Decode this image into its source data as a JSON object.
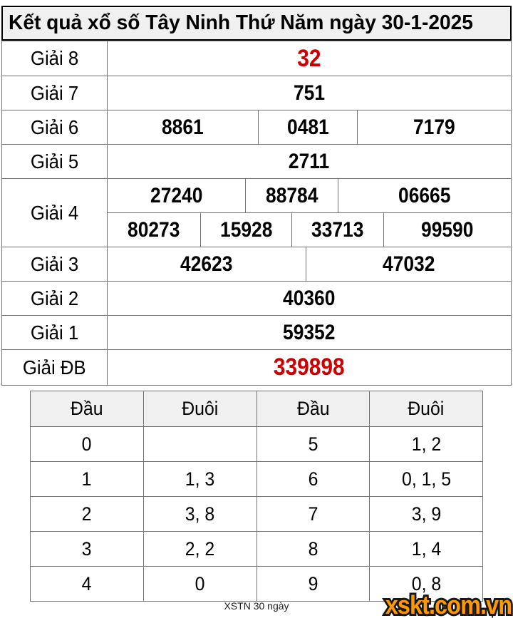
{
  "title": "Kết quả xổ số Tây Ninh Thứ Năm ngày 30-1-2025",
  "results": {
    "rows": [
      {
        "label": "Giải 8",
        "groups": [
          {
            "cells": [
              {
                "value": "32",
                "red": true
              }
            ]
          }
        ]
      },
      {
        "label": "Giải 7",
        "groups": [
          {
            "cells": [
              {
                "value": "751"
              }
            ]
          }
        ]
      },
      {
        "label": "Giải 6",
        "groups": [
          {
            "cells": [
              {
                "value": "8861"
              },
              {
                "value": "0481"
              },
              {
                "value": "7179"
              }
            ]
          }
        ]
      },
      {
        "label": "Giải 5",
        "groups": [
          {
            "cells": [
              {
                "value": "2711"
              }
            ]
          }
        ]
      },
      {
        "label": "Giải 4",
        "groups": [
          {
            "cells": [
              {
                "value": "27240"
              },
              {
                "value": "88784"
              },
              {
                "value": "06665"
              }
            ]
          },
          {
            "cells": [
              {
                "value": "80273"
              },
              {
                "value": "15928"
              },
              {
                "value": "33713"
              },
              {
                "value": "99590"
              }
            ]
          }
        ]
      },
      {
        "label": "Giải 3",
        "groups": [
          {
            "cells": [
              {
                "value": "42623"
              },
              {
                "value": "47032"
              }
            ]
          }
        ]
      },
      {
        "label": "Giải 2",
        "groups": [
          {
            "cells": [
              {
                "value": "40360"
              }
            ]
          }
        ]
      },
      {
        "label": "Giải 1",
        "groups": [
          {
            "cells": [
              {
                "value": "59352"
              }
            ]
          }
        ]
      },
      {
        "label": "Giải ĐB",
        "groups": [
          {
            "cells": [
              {
                "value": "339898",
                "red": true
              }
            ]
          }
        ]
      }
    ]
  },
  "head_tail_table": {
    "headers": [
      "Đầu",
      "Đuôi",
      "Đầu",
      "Đuôi"
    ],
    "rows": [
      [
        "0",
        "",
        "5",
        "1, 2"
      ],
      [
        "1",
        "1, 3",
        "6",
        "0, 1, 5"
      ],
      [
        "2",
        "3, 8",
        "7",
        "3, 9"
      ],
      [
        "3",
        "2, 2",
        "8",
        "1, 4"
      ],
      [
        "4",
        "0",
        "9",
        "0, 8"
      ]
    ]
  },
  "footer": {
    "note": "XSTN 30 ngày",
    "logo": "xskt.com.vn"
  },
  "colors": {
    "red_number": "#cc0000",
    "logo_orange": "#ff9900",
    "header_bg": "#f0f0f0",
    "border_gray": "#737373"
  }
}
